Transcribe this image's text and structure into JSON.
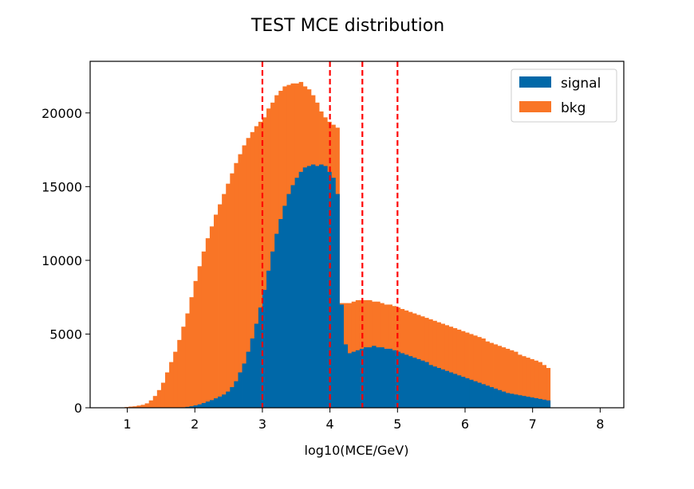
{
  "chart_data": {
    "type": "bar",
    "title": "TEST MCE distribution",
    "xlabel": "log10(MCE/GeV)",
    "ylabel": "",
    "xlim": [
      0.45,
      8.35
    ],
    "ylim": [
      0,
      23500
    ],
    "xticks": [
      1,
      2,
      3,
      4,
      5,
      6,
      7,
      8
    ],
    "yticks": [
      0,
      5000,
      10000,
      15000,
      20000
    ],
    "bin_start": 0.9,
    "bin_width": 0.06,
    "legend": {
      "position": "upper right"
    },
    "series": [
      {
        "name": "signal",
        "color": "#0068a8",
        "values": [
          0,
          0,
          0,
          0,
          0,
          0,
          0,
          0,
          0,
          0,
          0,
          0,
          0,
          0,
          10,
          30,
          60,
          100,
          160,
          230,
          320,
          420,
          520,
          640,
          760,
          900,
          1100,
          1400,
          1800,
          2400,
          3000,
          3800,
          4700,
          5700,
          6800,
          8000,
          9300,
          10600,
          11800,
          12800,
          13700,
          14500,
          15100,
          15600,
          16000,
          16300,
          16400,
          16500,
          16400,
          16500,
          16400,
          16000,
          15600,
          14500,
          7000,
          4300,
          3700,
          3800,
          3900,
          4000,
          4100,
          4100,
          4200,
          4100,
          4100,
          4000,
          4000,
          3900,
          3800,
          3700,
          3600,
          3500,
          3400,
          3300,
          3200,
          3100,
          2900,
          2800,
          2700,
          2600,
          2500,
          2400,
          2300,
          2200,
          2100,
          2000,
          1900,
          1800,
          1700,
          1600,
          1500,
          1400,
          1300,
          1200,
          1100,
          1000,
          950,
          900,
          850,
          800,
          750,
          700,
          650,
          600,
          550,
          500
        ]
      },
      {
        "name": "bkg",
        "color": "#f97526",
        "values": [
          20,
          50,
          80,
          100,
          150,
          200,
          300,
          500,
          800,
          1200,
          1700,
          2400,
          3100,
          3800,
          4600,
          5500,
          6400,
          7500,
          8600,
          9600,
          10600,
          11500,
          12300,
          13100,
          13800,
          14500,
          15200,
          15900,
          16600,
          17200,
          17800,
          18300,
          18700,
          19100,
          19400,
          19700,
          20300,
          20700,
          21200,
          21500,
          21800,
          21900,
          22000,
          22000,
          22100,
          21800,
          21600,
          21200,
          20700,
          20100,
          19700,
          19400,
          19200,
          19000,
          7100,
          7100,
          7100,
          7200,
          7300,
          7300,
          7300,
          7300,
          7200,
          7200,
          7100,
          7000,
          7000,
          6900,
          6800,
          6700,
          6600,
          6500,
          6400,
          6300,
          6200,
          6100,
          6000,
          5900,
          5800,
          5700,
          5600,
          5500,
          5400,
          5300,
          5200,
          5100,
          5000,
          4900,
          4800,
          4700,
          4500,
          4400,
          4300,
          4200,
          4100,
          4000,
          3900,
          3800,
          3600,
          3500,
          3400,
          3300,
          3200,
          3100,
          2900,
          2700
        ]
      }
    ],
    "vlines": [
      3.0,
      4.0,
      4.48,
      5.0
    ],
    "vline_color": "#ff0000"
  }
}
